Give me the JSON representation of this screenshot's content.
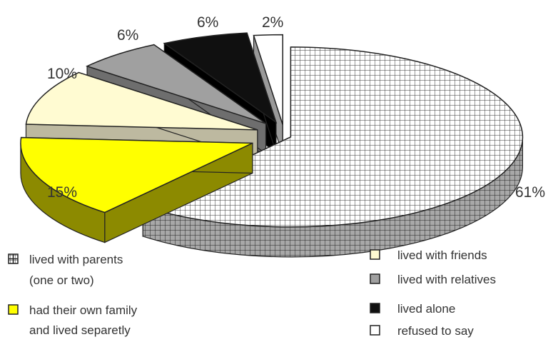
{
  "chart_data": {
    "type": "pie",
    "title": "",
    "slices": [
      {
        "label": [
          "lived with parents",
          "(one or two)"
        ],
        "value": 61,
        "display": "61%",
        "fill": "url(#grid)",
        "side": "#a8a8a8",
        "pattern": true
      },
      {
        "label": [
          "had their own family",
          "and lived separetly"
        ],
        "value": 15,
        "display": "15%",
        "fill": "#ffff00",
        "side": "#8c8a00"
      },
      {
        "label": [
          "lived with friends"
        ],
        "value": 10,
        "display": "10%",
        "fill": "#fffbd2",
        "side": "#bdb9a0"
      },
      {
        "label": [
          "lived with relatives"
        ],
        "value": 6,
        "display": "6%",
        "fill": "#a0a0a0",
        "side": "#6e6e6e"
      },
      {
        "label": [
          "lived alone"
        ],
        "value": 6,
        "display": "6%",
        "fill": "#101010",
        "side": "#000000"
      },
      {
        "label": [
          "refused to say"
        ],
        "value": 2,
        "display": "2%",
        "fill": "#ffffff",
        "side": "#9a9a9a"
      }
    ],
    "legend_position": "bottom",
    "colors": {
      "outline": "#222222",
      "grid_line": "#333333"
    }
  }
}
